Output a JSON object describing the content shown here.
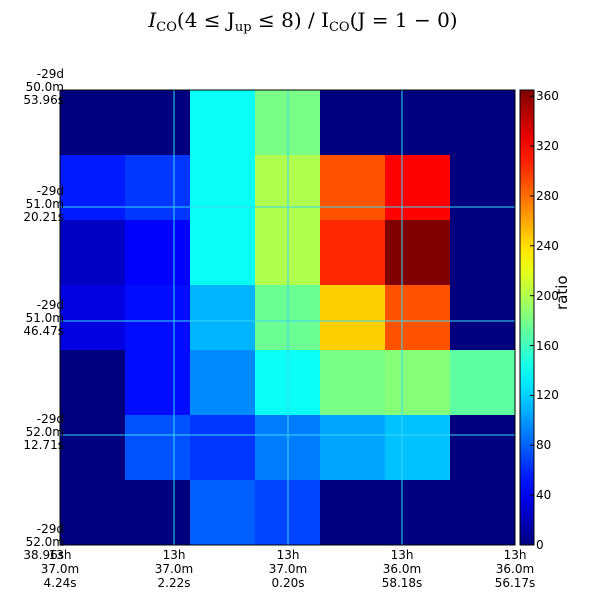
{
  "chart_data": {
    "type": "heatmap",
    "title": {
      "lead": "I",
      "lead_sub": "CO",
      "middle": "(4 ≤ J",
      "middle_sub": "up",
      "tail": " ≤ 8) / I",
      "tail_sub": "CO",
      "end": "(J = 1 − 0)"
    },
    "colorbar": {
      "label": "ratio",
      "range": [
        0,
        365
      ],
      "ticks": [
        0,
        40,
        80,
        120,
        160,
        200,
        240,
        280,
        320,
        360
      ],
      "colormap": "jet"
    },
    "grid": true,
    "grid_color": "#3ad7f0",
    "background_color": "#00007f",
    "nrows": 7,
    "ncols": 7,
    "values": [
      [
        null,
        null,
        140,
        180,
        null,
        null,
        null
      ],
      [
        55,
        65,
        140,
        200,
        290,
        320,
        null
      ],
      [
        25,
        45,
        140,
        200,
        305,
        365,
        null
      ],
      [
        35,
        50,
        110,
        175,
        245,
        290,
        null
      ],
      [
        null,
        50,
        95,
        140,
        180,
        185,
        170
      ],
      [
        null,
        75,
        65,
        90,
        105,
        115,
        null
      ],
      [
        null,
        null,
        80,
        70,
        null,
        null,
        null
      ]
    ],
    "xticks": [
      [
        "13h",
        "37.0m",
        "4.24s"
      ],
      [
        "13h",
        "37.0m",
        "2.22s"
      ],
      [
        "13h",
        "37.0m",
        "0.20s"
      ],
      [
        "13h",
        "36.0m",
        "58.18s"
      ],
      [
        "13h",
        "36.0m",
        "56.17s"
      ]
    ],
    "yticks": [
      [
        "-29d",
        "50.0m",
        "53.96s"
      ],
      [
        "-29d",
        "51.0m",
        "20.21s"
      ],
      [
        "-29d",
        "51.0m",
        "46.47s"
      ],
      [
        "-29d",
        "52.0m",
        "12.71s"
      ],
      [
        "-29d",
        "52.0m",
        "38.96s"
      ]
    ]
  }
}
